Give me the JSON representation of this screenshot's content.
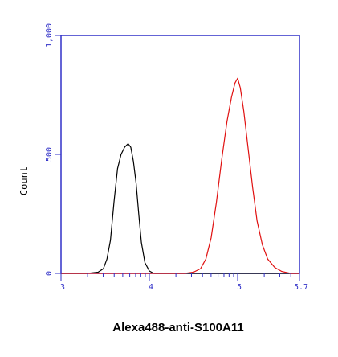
{
  "chart_data": {
    "type": "line",
    "xlabel": "Alexa488-anti-S100A11",
    "ylabel": "Count",
    "x_scale": "log10",
    "x_tick_labels": [
      "3",
      "4",
      "5",
      "5.7"
    ],
    "x_tick_exponents": [
      3,
      4,
      5,
      5.7
    ],
    "xlim_exponent": [
      3,
      5.7
    ],
    "y_ticks": [
      0,
      500,
      1000
    ],
    "y_tick_labels": [
      "0",
      "500",
      "1,000"
    ],
    "ylim": [
      0,
      1000
    ],
    "grid": false,
    "legend": "none",
    "colors": {
      "axis": "#3030c8",
      "ticklabels": "#3030c8"
    },
    "series": [
      {
        "color": "#000000",
        "points": [
          [
            3.0,
            0
          ],
          [
            3.3,
            0
          ],
          [
            3.42,
            5
          ],
          [
            3.48,
            20
          ],
          [
            3.52,
            60
          ],
          [
            3.56,
            140
          ],
          [
            3.6,
            300
          ],
          [
            3.64,
            440
          ],
          [
            3.68,
            500
          ],
          [
            3.72,
            530
          ],
          [
            3.76,
            545
          ],
          [
            3.79,
            530
          ],
          [
            3.82,
            470
          ],
          [
            3.85,
            380
          ],
          [
            3.88,
            250
          ],
          [
            3.91,
            130
          ],
          [
            3.95,
            45
          ],
          [
            4.0,
            10
          ],
          [
            4.05,
            0
          ],
          [
            5.7,
            0
          ]
        ]
      },
      {
        "color": "#e01010",
        "points": [
          [
            3.0,
            0
          ],
          [
            4.4,
            0
          ],
          [
            4.5,
            5
          ],
          [
            4.58,
            20
          ],
          [
            4.64,
            60
          ],
          [
            4.7,
            150
          ],
          [
            4.76,
            300
          ],
          [
            4.82,
            480
          ],
          [
            4.88,
            640
          ],
          [
            4.93,
            740
          ],
          [
            4.97,
            800
          ],
          [
            5.0,
            820
          ],
          [
            5.03,
            780
          ],
          [
            5.07,
            680
          ],
          [
            5.12,
            520
          ],
          [
            5.17,
            360
          ],
          [
            5.22,
            220
          ],
          [
            5.28,
            120
          ],
          [
            5.34,
            60
          ],
          [
            5.42,
            25
          ],
          [
            5.5,
            8
          ],
          [
            5.6,
            0
          ],
          [
            5.7,
            0
          ]
        ]
      }
    ]
  }
}
